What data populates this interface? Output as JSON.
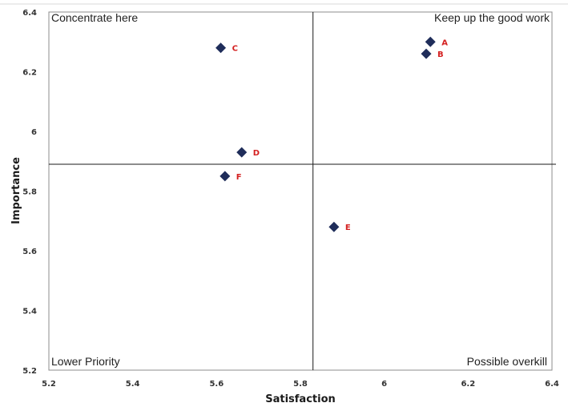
{
  "chart_data": {
    "type": "scatter",
    "title": "",
    "xlabel": "Satisfaction",
    "ylabel": "Importance",
    "xlim": [
      5.2,
      6.4
    ],
    "ylim": [
      5.2,
      6.4
    ],
    "xticks": [
      {
        "value": 5.2,
        "label": "5.2"
      },
      {
        "value": 5.4,
        "label": "5.4"
      },
      {
        "value": 5.6,
        "label": "5.6"
      },
      {
        "value": 5.8,
        "label": "5.8"
      },
      {
        "value": 6.0,
        "label": "6"
      },
      {
        "value": 6.2,
        "label": "6.2"
      },
      {
        "value": 6.4,
        "label": "6.4"
      }
    ],
    "yticks": [
      {
        "value": 5.2,
        "label": "5.2"
      },
      {
        "value": 5.4,
        "label": "5.4"
      },
      {
        "value": 5.6,
        "label": "5.6"
      },
      {
        "value": 5.8,
        "label": "5.8"
      },
      {
        "value": 6.0,
        "label": "6"
      },
      {
        "value": 6.2,
        "label": "6.2"
      },
      {
        "value": 6.4,
        "label": "6.4"
      }
    ],
    "reference_lines": {
      "x": 5.83,
      "y": 5.89
    },
    "quadrant_labels": {
      "top_left": "Concentrate here",
      "top_right": "Keep up the good work",
      "bottom_left": "Lower Priority",
      "bottom_right": "Possible overkill"
    },
    "points": [
      {
        "label": "A",
        "x": 6.11,
        "y": 6.3
      },
      {
        "label": "B",
        "x": 6.1,
        "y": 6.26
      },
      {
        "label": "C",
        "x": 5.61,
        "y": 6.28
      },
      {
        "label": "D",
        "x": 5.66,
        "y": 5.93
      },
      {
        "label": "E",
        "x": 5.88,
        "y": 5.68
      },
      {
        "label": "F",
        "x": 5.62,
        "y": 5.85
      }
    ],
    "marker": "diamond",
    "grid": false,
    "colors": {
      "marker": "#1f2d5a",
      "point_label": "#d42020",
      "frame": "#8c8c8c",
      "reference_line": "#1a1a1a"
    }
  }
}
